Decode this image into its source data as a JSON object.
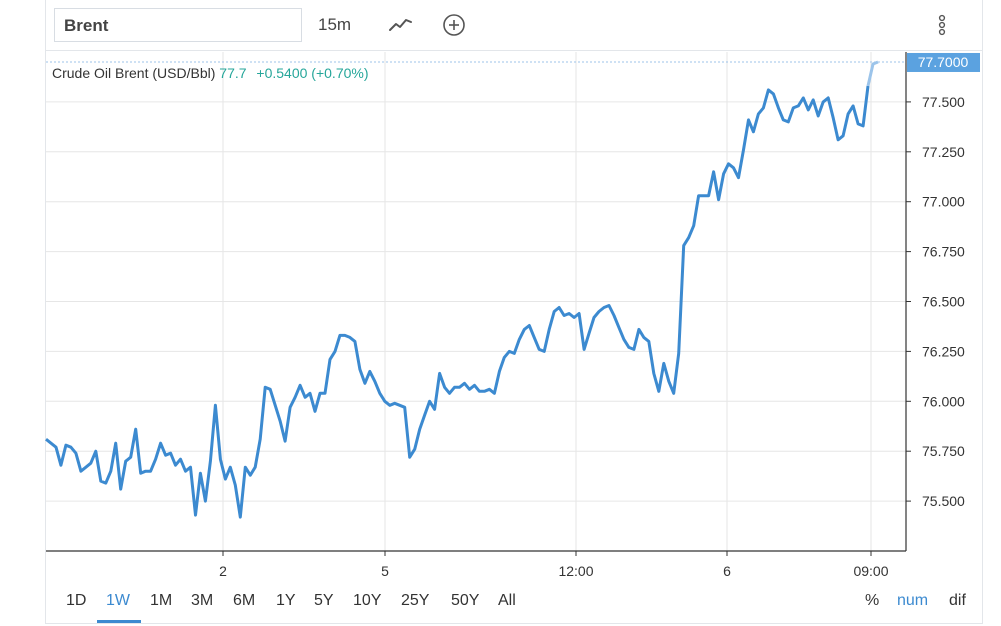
{
  "toolbar": {
    "symbol": "Brent",
    "interval": "15m",
    "icons": [
      "line-chart-icon",
      "plus-circle-icon",
      "vertical-ellipsis-icon"
    ]
  },
  "legend": {
    "name": "Crude Oil Brent (USD/Bbl)",
    "last": "77.7",
    "change": "+0.5400 (+0.70%)"
  },
  "price_label": "77.7000",
  "ranges": [
    "1D",
    "1W",
    "1M",
    "3M",
    "6M",
    "1Y",
    "5Y",
    "10Y",
    "25Y",
    "50Y",
    "All"
  ],
  "active_range": "1W",
  "modes": [
    "%",
    "num",
    "dif"
  ],
  "active_mode": "num",
  "colors": {
    "line": "#3c8ad0",
    "change": "#26a69a",
    "price_label_bg": "#5ba2e0",
    "grid": "#e6e6e6"
  },
  "chart_data": {
    "type": "line",
    "title": "",
    "xlabel": "",
    "ylabel": "",
    "ylim": [
      75.25,
      77.75
    ],
    "y_ticks": [
      "77.500",
      "77.250",
      "77.000",
      "76.750",
      "76.500",
      "76.250",
      "76.000",
      "75.750",
      "75.500"
    ],
    "x_ticks": [
      "2",
      "5",
      "12:00",
      "6",
      "09:00"
    ],
    "series": [
      {
        "values": [
          75.81,
          75.79,
          75.77,
          75.68,
          75.78,
          75.77,
          75.74,
          75.65,
          75.67,
          75.69,
          75.75,
          75.6,
          75.59,
          75.65,
          75.79,
          75.56,
          75.7,
          75.72,
          75.86,
          75.64,
          75.65,
          75.65,
          75.71,
          75.79,
          75.73,
          75.74,
          75.68,
          75.71,
          75.65,
          75.67,
          75.43,
          75.64,
          75.5,
          75.7,
          75.98,
          75.71,
          75.61,
          75.67,
          75.58,
          75.42,
          75.67,
          75.63,
          75.67,
          75.81,
          76.07,
          76.06,
          75.98,
          75.9,
          75.8,
          75.97,
          76.02,
          76.08,
          76.02,
          76.04,
          75.95,
          76.04,
          76.04,
          76.21,
          76.25,
          76.33,
          76.33,
          76.32,
          76.3,
          76.16,
          76.09,
          76.15,
          76.1,
          76.04,
          76.0,
          75.98,
          75.99,
          75.98,
          75.97,
          75.72,
          75.76,
          75.86,
          75.93,
          76.0,
          75.96,
          76.14,
          76.07,
          76.04,
          76.07,
          76.07,
          76.09,
          76.06,
          76.08,
          76.05,
          76.05,
          76.06,
          76.04,
          76.15,
          76.22,
          76.25,
          76.24,
          76.31,
          76.36,
          76.38,
          76.32,
          76.26,
          76.25,
          76.36,
          76.45,
          76.47,
          76.43,
          76.44,
          76.42,
          76.44,
          76.26,
          76.34,
          76.42,
          76.45,
          76.47,
          76.48,
          76.43,
          76.37,
          76.31,
          76.27,
          76.26,
          76.36,
          76.32,
          76.3,
          76.14,
          76.05,
          76.19,
          76.1,
          76.04,
          76.24,
          76.78,
          76.82,
          76.88,
          77.03,
          77.03,
          77.03,
          77.15,
          77.01,
          77.14,
          77.19,
          77.17,
          77.12,
          77.26,
          77.41,
          77.35,
          77.44,
          77.47,
          77.56,
          77.54,
          77.47,
          77.41,
          77.4,
          77.47,
          77.48,
          77.52,
          77.46,
          77.51,
          77.43,
          77.5,
          77.52,
          77.42,
          77.31,
          77.33,
          77.44,
          77.48,
          77.39,
          77.38,
          77.58,
          77.69,
          77.7
        ]
      }
    ]
  }
}
